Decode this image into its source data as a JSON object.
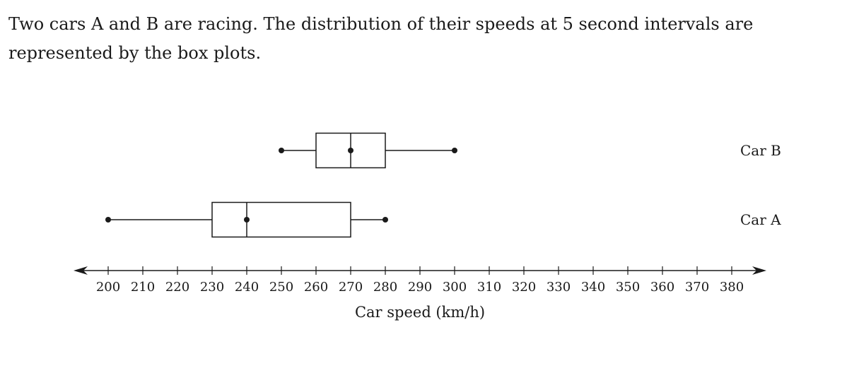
{
  "question": {
    "text": "Two cars A and B are racing. The distribution of their speeds at 5 second intervals are represented by the box plots."
  },
  "chart_data": {
    "type": "boxplot",
    "orientation": "horizontal",
    "xlabel": "Car speed (km/h)",
    "xlim": [
      200,
      380
    ],
    "tick_step": 10,
    "ticks": [
      200,
      210,
      220,
      230,
      240,
      250,
      260,
      270,
      280,
      290,
      300,
      310,
      320,
      330,
      340,
      350,
      360,
      370,
      380
    ],
    "axis_arrows": "both-ends",
    "grid": false,
    "series": [
      {
        "name": "Car B",
        "min": 250,
        "q1": 260,
        "median": 270,
        "q3": 280,
        "max": 300
      },
      {
        "name": "Car A",
        "min": 200,
        "q1": 230,
        "median": 240,
        "q3": 270,
        "max": 280
      }
    ]
  }
}
